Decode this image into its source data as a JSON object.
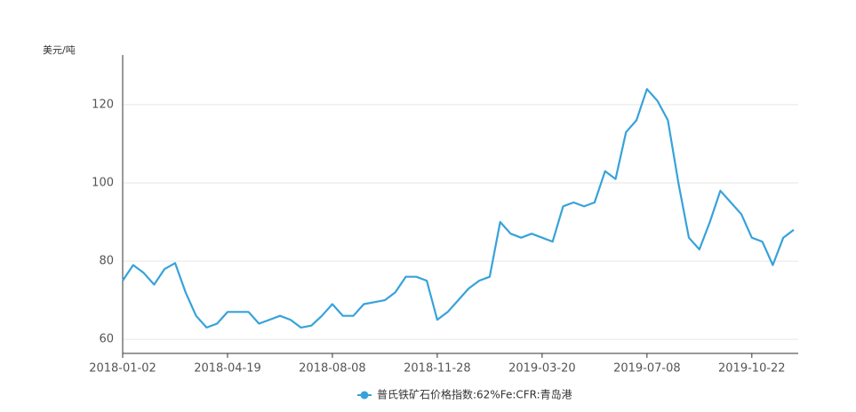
{
  "chart_data": {
    "type": "line",
    "y_axis_label": "美元/吨",
    "categories": [
      "2018-01-02",
      null,
      null,
      null,
      null,
      null,
      null,
      null,
      null,
      null,
      "2018-04-19",
      null,
      null,
      null,
      null,
      null,
      null,
      null,
      null,
      null,
      "2018-08-08",
      null,
      null,
      null,
      null,
      null,
      null,
      null,
      null,
      null,
      "2018-11-28",
      null,
      null,
      null,
      null,
      null,
      null,
      null,
      null,
      null,
      "2019-03-20",
      null,
      null,
      null,
      null,
      null,
      null,
      null,
      null,
      null,
      "2019-07-08",
      null,
      null,
      null,
      null,
      null,
      null,
      null,
      null,
      null,
      "2019-10-22",
      null,
      null,
      null,
      null
    ],
    "series": [
      {
        "name": "普氏铁矿石价格指数:62%Fe:CFR:青岛港",
        "color": "#37a2da",
        "values": [
          75,
          79,
          77,
          74,
          78,
          79.5,
          72,
          66,
          63,
          64,
          67,
          67,
          67,
          64,
          65,
          66,
          65,
          63,
          63.5,
          66,
          69,
          66,
          66,
          69,
          69.5,
          70,
          72,
          76,
          76,
          75,
          65,
          67,
          70,
          73,
          75,
          76,
          90,
          87,
          86,
          87,
          86,
          85,
          94,
          95,
          94,
          95,
          103,
          101,
          113,
          116,
          124,
          121,
          116,
          100,
          86,
          83,
          90,
          98,
          95,
          92,
          86,
          85,
          79,
          86,
          88
        ]
      }
    ],
    "ylim": [
      56.4,
      132.7
    ],
    "yticks": [
      60,
      80,
      100,
      120
    ],
    "grid": true
  }
}
